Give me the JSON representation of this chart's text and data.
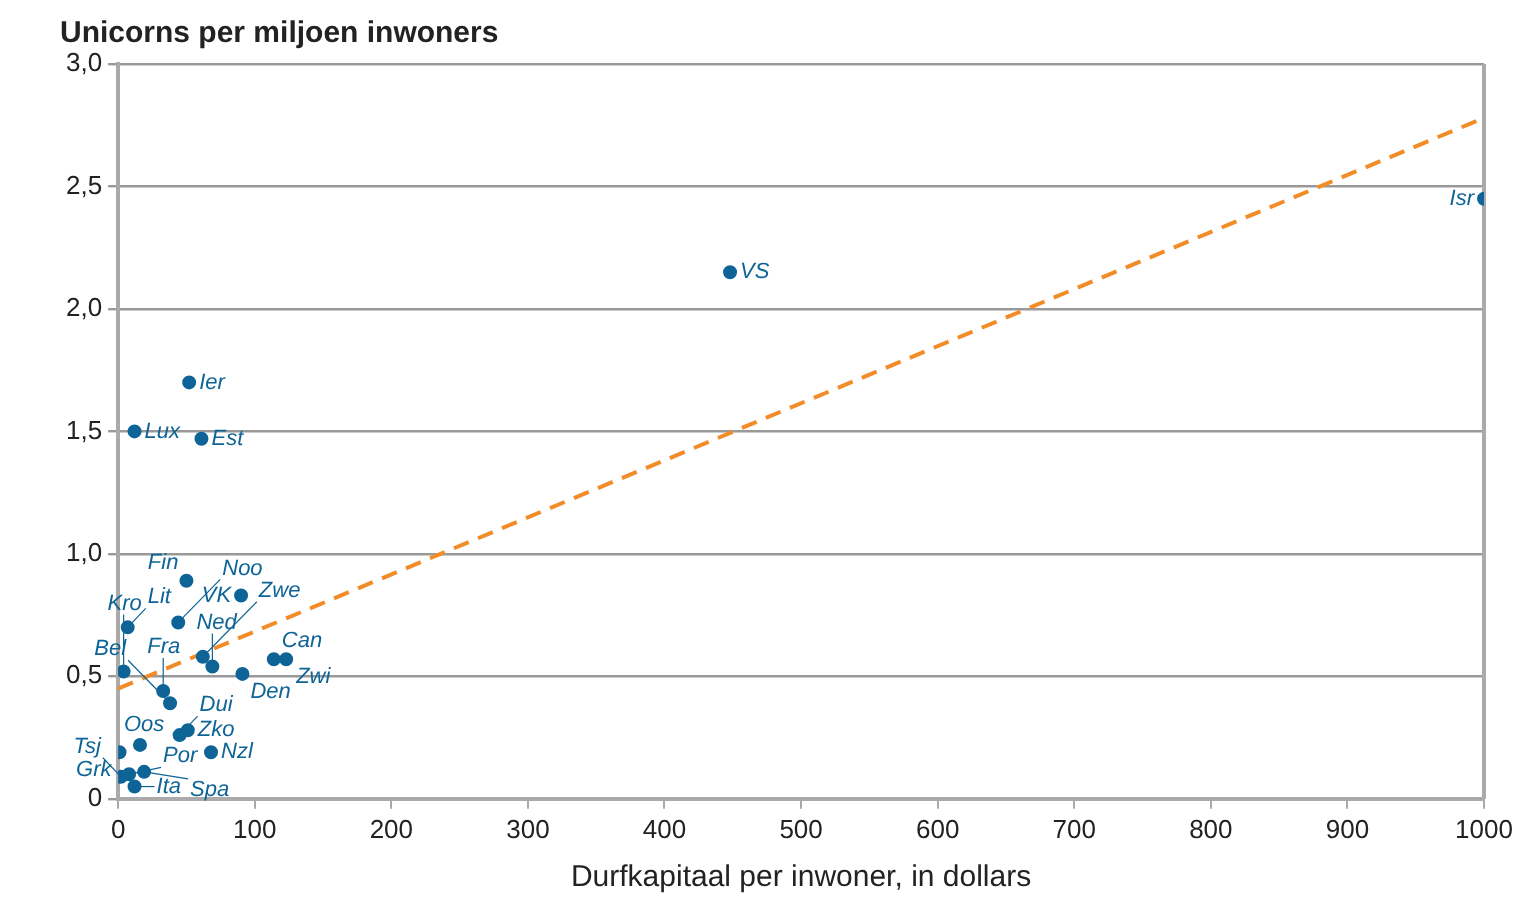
{
  "chart_data": {
    "type": "scatter",
    "ylabel": "Unicorns per miljoen inwoners",
    "xlabel": "Durfkapitaal per inwoner, in dollars",
    "xlim": [
      0,
      1000
    ],
    "xticks": [
      0,
      100,
      200,
      300,
      400,
      500,
      600,
      700,
      800,
      900,
      1000
    ],
    "ylim": [
      0,
      3
    ],
    "yticks": [
      {
        "value": 0,
        "label": "0"
      },
      {
        "value": 0.5,
        "label": "0,5"
      },
      {
        "value": 1,
        "label": "1,0"
      },
      {
        "value": 1.5,
        "label": "1,5"
      },
      {
        "value": 2,
        "label": "2,0"
      },
      {
        "value": 2.5,
        "label": "2,5"
      },
      {
        "value": 3,
        "label": "3,0"
      }
    ],
    "grid": "y",
    "legend": false,
    "marker": "circle",
    "series": [
      {
        "type": "scatter",
        "color": "#0e6496",
        "x": [
          1000,
          448,
          52,
          12,
          61,
          50,
          90,
          7,
          44,
          62,
          69,
          114,
          123,
          91,
          4,
          33,
          38,
          45,
          51,
          16,
          1,
          8,
          2,
          19,
          12,
          68
        ],
        "values": [
          2.45,
          2.15,
          1.7,
          1.5,
          1.47,
          0.89,
          0.83,
          0.7,
          0.72,
          0.58,
          0.54,
          0.57,
          0.57,
          0.51,
          0.52,
          0.44,
          0.39,
          0.26,
          0.28,
          0.22,
          0.19,
          0.1,
          0.09,
          0.11,
          0.05,
          0.19
        ]
      },
      {
        "type": "line",
        "color": "#f28c28",
        "line_style": "dashed",
        "marker": "none",
        "x": [
          0,
          1000
        ],
        "values": [
          0.45,
          2.78
        ]
      }
    ],
    "annotations": [
      {
        "text": "Isr",
        "x": 1000,
        "y": 2.45
      },
      {
        "text": "VS",
        "x": 448,
        "y": 2.15
      },
      {
        "text": "Ier",
        "x": 52,
        "y": 1.7
      },
      {
        "text": "Lux",
        "x": 12,
        "y": 1.5
      },
      {
        "text": "Est",
        "x": 61,
        "y": 1.47
      },
      {
        "text": "Fin",
        "x": 50,
        "y": 0.89
      },
      {
        "text": "VK",
        "x": 90,
        "y": 0.83
      },
      {
        "text": "Lit",
        "x": 7,
        "y": 0.7
      },
      {
        "text": "Noo",
        "x": 44,
        "y": 0.72
      },
      {
        "text": "Zwe",
        "x": 62,
        "y": 0.58
      },
      {
        "text": "Ned",
        "x": 69,
        "y": 0.54
      },
      {
        "text": "Can",
        "x": 114,
        "y": 0.57
      },
      {
        "text": "Zwi",
        "x": 123,
        "y": 0.57
      },
      {
        "text": "Den",
        "x": 91,
        "y": 0.51
      },
      {
        "text": "Kro",
        "x": 4,
        "y": 0.52
      },
      {
        "text": "Fra",
        "x": 33,
        "y": 0.44
      },
      {
        "text": "Bel",
        "x": 38,
        "y": 0.39
      },
      {
        "text": "Dui",
        "x": 45,
        "y": 0.26
      },
      {
        "text": "Zko",
        "x": 51,
        "y": 0.28
      },
      {
        "text": "Oos",
        "x": 16,
        "y": 0.22
      },
      {
        "text": "Grk",
        "x": 1,
        "y": 0.19
      },
      {
        "text": "Por",
        "x": 8,
        "y": 0.1
      },
      {
        "text": "Tsj",
        "x": 2,
        "y": 0.09
      },
      {
        "text": "Spa",
        "x": 19,
        "y": 0.11
      },
      {
        "text": "Ita",
        "x": 12,
        "y": 0.05
      },
      {
        "text": "Nzl",
        "x": 68,
        "y": 0.19
      }
    ]
  }
}
